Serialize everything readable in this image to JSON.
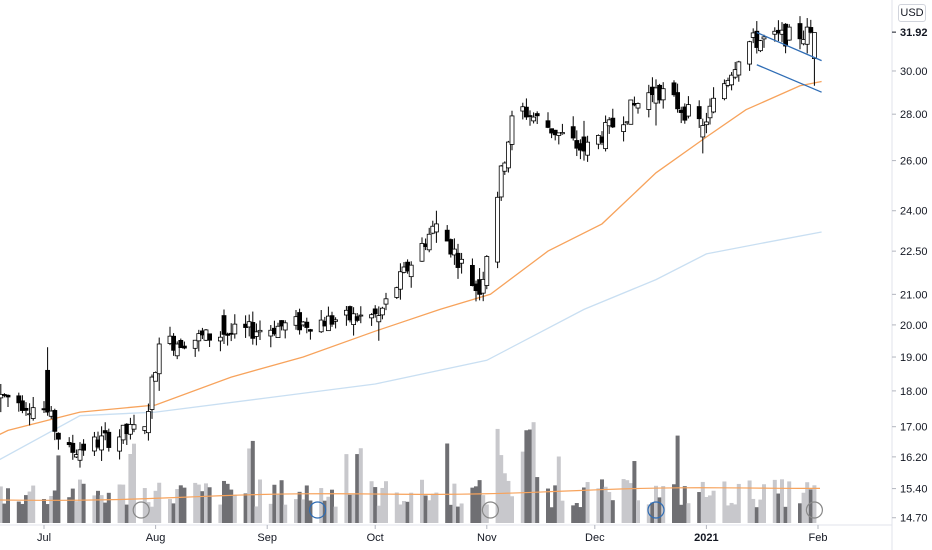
{
  "currency": "USD",
  "last_price_label": "31.92",
  "colors": {
    "candle_up_fill": "#ffffff",
    "candle_down_fill": "#000000",
    "candle_border": "#000000",
    "ma50": "#f7a35c",
    "ma200": "#c9dff2",
    "volume_light": "#c8c8cc",
    "volume_dark": "#6f6f73",
    "volume_ma": "#f7a35c",
    "channel": "#2f6db5",
    "axis_text": "#131722"
  },
  "chart_data": {
    "type": "candlestick",
    "y_scale": "log",
    "ylim": [
      14.6,
      33.6
    ],
    "y_ticks": [
      "14.70",
      "15.40",
      "16.20",
      "17.00",
      "18.00",
      "19.00",
      "20.00",
      "21.00",
      "22.50",
      "24.00",
      "26.00",
      "28.00",
      "30.00"
    ],
    "x_ticks": [
      "Jul",
      "Aug",
      "Sep",
      "Oct",
      "Nov",
      "Dec",
      "2021",
      "Feb"
    ],
    "x_tick_days": [
      0,
      31,
      62,
      92,
      123,
      153,
      184,
      215
    ],
    "candles_sample": [
      {
        "day": -12,
        "o": 17.8,
        "h": 18.2,
        "l": 17.4,
        "c": 17.9
      },
      {
        "day": 1,
        "o": 18.6,
        "h": 19.3,
        "l": 17.3,
        "c": 17.4
      },
      {
        "day": 6,
        "o": 16.9,
        "h": 17.1,
        "l": 16.1,
        "c": 16.3
      },
      {
        "day": 28,
        "o": 16.9,
        "h": 17.0,
        "l": 16.8,
        "c": 17.0
      },
      {
        "day": 32,
        "o": 18.5,
        "h": 19.6,
        "l": 18.0,
        "c": 19.4
      },
      {
        "day": 50,
        "o": 20.3,
        "h": 20.5,
        "l": 19.4,
        "c": 19.7
      },
      {
        "day": 75,
        "o": 20.6,
        "h": 21.0,
        "l": 19.8,
        "c": 20.1
      },
      {
        "day": 93,
        "o": 20.1,
        "h": 20.6,
        "l": 19.5,
        "c": 20.3
      },
      {
        "day": 109,
        "o": 23.2,
        "h": 24.0,
        "l": 22.8,
        "c": 23.5
      },
      {
        "day": 121,
        "o": 21.5,
        "h": 21.9,
        "l": 20.8,
        "c": 21.0
      },
      {
        "day": 131,
        "o": 26.5,
        "h": 28.8,
        "l": 26.0,
        "c": 28.4
      },
      {
        "day": 150,
        "o": 27.0,
        "h": 27.7,
        "l": 26.0,
        "c": 26.4
      },
      {
        "day": 170,
        "o": 28.5,
        "h": 29.6,
        "l": 27.5,
        "c": 29.2
      },
      {
        "day": 183,
        "o": 27.0,
        "h": 27.8,
        "l": 26.3,
        "c": 27.5
      },
      {
        "day": 195,
        "o": 31.6,
        "h": 32.0,
        "l": 30.5,
        "c": 31.4
      },
      {
        "day": 214,
        "o": 30.6,
        "h": 31.8,
        "l": 29.3,
        "c": 31.9
      }
    ],
    "volume_ma_note": "orange moving average over volume bars",
    "moving_averages": [
      {
        "name": "MA50",
        "color": "#f7a35c",
        "points": [
          [
            -23,
            16.3
          ],
          [
            -10,
            16.9
          ],
          [
            10,
            17.4
          ],
          [
            31,
            17.6
          ],
          [
            52,
            18.4
          ],
          [
            72,
            19.0
          ],
          [
            92,
            19.8
          ],
          [
            110,
            20.5
          ],
          [
            124,
            21.0
          ],
          [
            140,
            22.5
          ],
          [
            155,
            23.5
          ],
          [
            170,
            25.5
          ],
          [
            184,
            27.0
          ],
          [
            195,
            28.2
          ],
          [
            210,
            29.3
          ],
          [
            216,
            29.5
          ]
        ]
      },
      {
        "name": "MA200",
        "color": "#c9dff2",
        "points": [
          [
            -23,
            15.6
          ],
          [
            10,
            17.3
          ],
          [
            31,
            17.4
          ],
          [
            62,
            17.8
          ],
          [
            92,
            18.2
          ],
          [
            123,
            18.9
          ],
          [
            150,
            20.5
          ],
          [
            170,
            21.5
          ],
          [
            184,
            22.4
          ],
          [
            200,
            22.8
          ],
          [
            216,
            23.2
          ]
        ]
      }
    ],
    "channel_lines": [
      {
        "from": [
          198,
          31.9
        ],
        "to": [
          216,
          30.5
        ]
      },
      {
        "from": [
          198,
          30.3
        ],
        "to": [
          216,
          29.0
        ]
      }
    ]
  }
}
